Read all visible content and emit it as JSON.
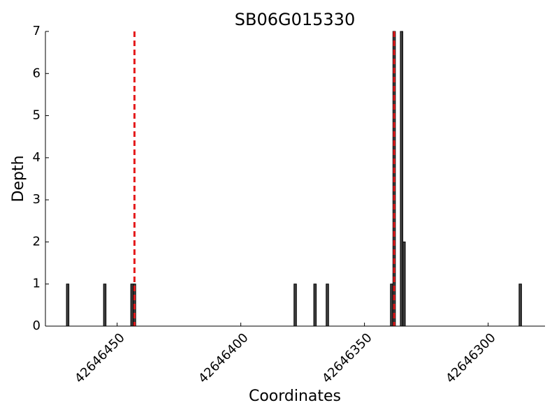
{
  "chart_data": {
    "type": "bar",
    "title": "SB06G015330",
    "x_label": "Coordinates",
    "y_label": "Depth",
    "x": [
      42646470,
      42646455,
      42646444,
      42646443,
      42646378,
      42646370,
      42646365,
      42646339,
      42646338,
      42646335,
      42646334,
      42646287
    ],
    "values": [
      1,
      1,
      1,
      1,
      1,
      1,
      1,
      1,
      7,
      7,
      2,
      1
    ],
    "color": "#404040",
    "xlim": [
      42646479,
      42646277
    ],
    "xticks": [
      42646450,
      42646400,
      42646350,
      42646300
    ],
    "ylim": [
      0,
      7
    ],
    "yticks": [
      0,
      1,
      2,
      3,
      4,
      5,
      6,
      7
    ],
    "reference_lines": [
      42646443,
      42646338
    ],
    "reference_color": "#e41a1c"
  }
}
